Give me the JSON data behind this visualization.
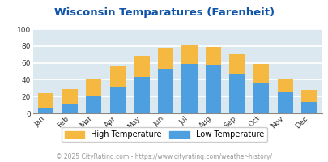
{
  "title": "Wisconsin Temparatures (Farenheit)",
  "months": [
    "Jan",
    "Feb",
    "Mar",
    "Apr",
    "May",
    "Jun",
    "Jul",
    "Aug",
    "Sep",
    "Oct",
    "Nov",
    "Dec"
  ],
  "low_temps": [
    7,
    11,
    21,
    32,
    43,
    53,
    59,
    58,
    47,
    37,
    25,
    13
  ],
  "high_temps": [
    24,
    29,
    40,
    56,
    68,
    78,
    82,
    79,
    70,
    59,
    41,
    28
  ],
  "low_color": "#4d9fdf",
  "high_color": "#f5b942",
  "bg_color": "#dce8f0",
  "title_color": "#1155aa",
  "ylim": [
    0,
    100
  ],
  "yticks": [
    0,
    20,
    40,
    60,
    80,
    100
  ],
  "legend_high": "High Temperature",
  "legend_low": "Low Temperature",
  "footer": "© 2025 CityRating.com - https://www.cityrating.com/weather-history/",
  "footer_color": "#999999",
  "grid_color": "#ffffff"
}
